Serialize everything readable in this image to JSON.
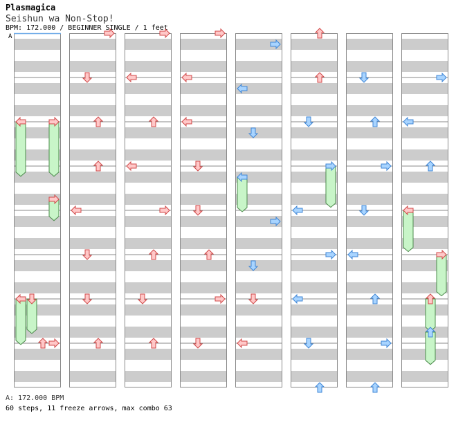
{
  "header": {
    "artist": "Plasmagica",
    "title": "Seishun wa Non-Stop!",
    "info": "BPM: 172.000 / BEGINNER SINGLE / 1 feet",
    "marker": "A"
  },
  "footer": {
    "bpm_line": "A: 172.000 BPM",
    "stats": "60 steps, 11 freeze arrows, max combo 63"
  },
  "colors": {
    "stripe": "#cccccc",
    "note_red": "#ffc8c8",
    "note_red_stroke": "#d04848",
    "note_blue": "#a8d4ff",
    "note_blue_stroke": "#3f86d6",
    "freeze_fill": "#c8f5c8",
    "freeze_stroke": "#4a8a4a"
  },
  "chart_data": {
    "type": "stepchart",
    "columns": 8,
    "measures_per_column": 8,
    "lanes": [
      "left",
      "down",
      "up",
      "right"
    ],
    "notes": [
      {
        "c": 0,
        "beat": 2,
        "lane": "left",
        "col": "red"
      },
      {
        "c": 0,
        "beat": 2,
        "lane": "right",
        "col": "red"
      },
      {
        "c": 0,
        "beat": 3.75,
        "lane": "right",
        "col": "red"
      },
      {
        "c": 0,
        "beat": 6,
        "lane": "left",
        "col": "red"
      },
      {
        "c": 0,
        "beat": 6,
        "lane": "down",
        "col": "red"
      },
      {
        "c": 0,
        "beat": 7,
        "lane": "up",
        "col": "red"
      },
      {
        "c": 0,
        "beat": 7,
        "lane": "right",
        "col": "red"
      },
      {
        "c": 1,
        "beat": 0,
        "lane": "right",
        "col": "red"
      },
      {
        "c": 1,
        "beat": 1,
        "lane": "down",
        "col": "red"
      },
      {
        "c": 1,
        "beat": 2,
        "lane": "up",
        "col": "red"
      },
      {
        "c": 1,
        "beat": 3,
        "lane": "up",
        "col": "red"
      },
      {
        "c": 1,
        "beat": 4,
        "lane": "left",
        "col": "red"
      },
      {
        "c": 1,
        "beat": 5,
        "lane": "down",
        "col": "red"
      },
      {
        "c": 1,
        "beat": 6,
        "lane": "down",
        "col": "red"
      },
      {
        "c": 1,
        "beat": 7,
        "lane": "up",
        "col": "red"
      },
      {
        "c": 2,
        "beat": 0,
        "lane": "right",
        "col": "red"
      },
      {
        "c": 2,
        "beat": 1,
        "lane": "left",
        "col": "red"
      },
      {
        "c": 2,
        "beat": 2,
        "lane": "up",
        "col": "red"
      },
      {
        "c": 2,
        "beat": 3,
        "lane": "left",
        "col": "red"
      },
      {
        "c": 2,
        "beat": 4,
        "lane": "right",
        "col": "red"
      },
      {
        "c": 2,
        "beat": 5,
        "lane": "up",
        "col": "red"
      },
      {
        "c": 2,
        "beat": 6,
        "lane": "down",
        "col": "red"
      },
      {
        "c": 2,
        "beat": 7,
        "lane": "up",
        "col": "red"
      },
      {
        "c": 3,
        "beat": 0,
        "lane": "right",
        "col": "red"
      },
      {
        "c": 3,
        "beat": 1,
        "lane": "left",
        "col": "red"
      },
      {
        "c": 3,
        "beat": 2,
        "lane": "left",
        "col": "red"
      },
      {
        "c": 3,
        "beat": 3,
        "lane": "down",
        "col": "red"
      },
      {
        "c": 3,
        "beat": 4,
        "lane": "down",
        "col": "red"
      },
      {
        "c": 3,
        "beat": 5,
        "lane": "up",
        "col": "red"
      },
      {
        "c": 3,
        "beat": 6,
        "lane": "right",
        "col": "red"
      },
      {
        "c": 3,
        "beat": 7,
        "lane": "down",
        "col": "red"
      },
      {
        "c": 4,
        "beat": 0.25,
        "lane": "right",
        "col": "blue"
      },
      {
        "c": 4,
        "beat": 1.25,
        "lane": "left",
        "col": "blue"
      },
      {
        "c": 4,
        "beat": 2.25,
        "lane": "down",
        "col": "blue"
      },
      {
        "c": 4,
        "beat": 3.25,
        "lane": "left",
        "col": "blue"
      },
      {
        "c": 4,
        "beat": 4.25,
        "lane": "right",
        "col": "blue"
      },
      {
        "c": 4,
        "beat": 5.25,
        "lane": "down",
        "col": "blue"
      },
      {
        "c": 4,
        "beat": 6,
        "lane": "down",
        "col": "red"
      },
      {
        "c": 4,
        "beat": 7,
        "lane": "left",
        "col": "red"
      },
      {
        "c": 5,
        "beat": 0,
        "lane": "up",
        "col": "red"
      },
      {
        "c": 5,
        "beat": 1,
        "lane": "up",
        "col": "red"
      },
      {
        "c": 5,
        "beat": 2,
        "lane": "down",
        "col": "blue"
      },
      {
        "c": 5,
        "beat": 3,
        "lane": "right",
        "col": "blue"
      },
      {
        "c": 5,
        "beat": 4,
        "lane": "left",
        "col": "blue"
      },
      {
        "c": 5,
        "beat": 5,
        "lane": "right",
        "col": "blue"
      },
      {
        "c": 5,
        "beat": 6,
        "lane": "left",
        "col": "blue"
      },
      {
        "c": 5,
        "beat": 7,
        "lane": "down",
        "col": "blue"
      },
      {
        "c": 5,
        "beat": 8,
        "lane": "up",
        "col": "blue"
      },
      {
        "c": 6,
        "beat": 1,
        "lane": "down",
        "col": "blue"
      },
      {
        "c": 6,
        "beat": 2,
        "lane": "up",
        "col": "blue"
      },
      {
        "c": 6,
        "beat": 3,
        "lane": "right",
        "col": "blue"
      },
      {
        "c": 6,
        "beat": 4,
        "lane": "down",
        "col": "blue"
      },
      {
        "c": 6,
        "beat": 5,
        "lane": "left",
        "col": "blue"
      },
      {
        "c": 6,
        "beat": 6,
        "lane": "up",
        "col": "blue"
      },
      {
        "c": 6,
        "beat": 7,
        "lane": "right",
        "col": "blue"
      },
      {
        "c": 6,
        "beat": 8,
        "lane": "up",
        "col": "blue"
      },
      {
        "c": 7,
        "beat": 1,
        "lane": "right",
        "col": "blue"
      },
      {
        "c": 7,
        "beat": 2,
        "lane": "left",
        "col": "blue"
      },
      {
        "c": 7,
        "beat": 3,
        "lane": "up",
        "col": "blue"
      },
      {
        "c": 7,
        "beat": 4,
        "lane": "left",
        "col": "red"
      },
      {
        "c": 7,
        "beat": 5,
        "lane": "right",
        "col": "red"
      },
      {
        "c": 7,
        "beat": 6,
        "lane": "up",
        "col": "red"
      },
      {
        "c": 7,
        "beat": 6.75,
        "lane": "up",
        "col": "blue"
      }
    ],
    "freezes": [
      {
        "c": 0,
        "lane": "left",
        "start": 2,
        "end": 3.2
      },
      {
        "c": 0,
        "lane": "right",
        "start": 2,
        "end": 3.2
      },
      {
        "c": 0,
        "lane": "right",
        "start": 3.75,
        "end": 4.2
      },
      {
        "c": 0,
        "lane": "left",
        "start": 6,
        "end": 7
      },
      {
        "c": 0,
        "lane": "down",
        "start": 6,
        "end": 6.75
      },
      {
        "c": 4,
        "lane": "left",
        "start": 3.25,
        "end": 4
      },
      {
        "c": 5,
        "lane": "right",
        "start": 3,
        "end": 3.9
      },
      {
        "c": 7,
        "lane": "left",
        "start": 4,
        "end": 4.9
      },
      {
        "c": 7,
        "lane": "right",
        "start": 5,
        "end": 5.9
      },
      {
        "c": 7,
        "lane": "up",
        "start": 6,
        "end": 6.7
      },
      {
        "c": 7,
        "lane": "up",
        "start": 6.75,
        "end": 7.45
      }
    ]
  }
}
